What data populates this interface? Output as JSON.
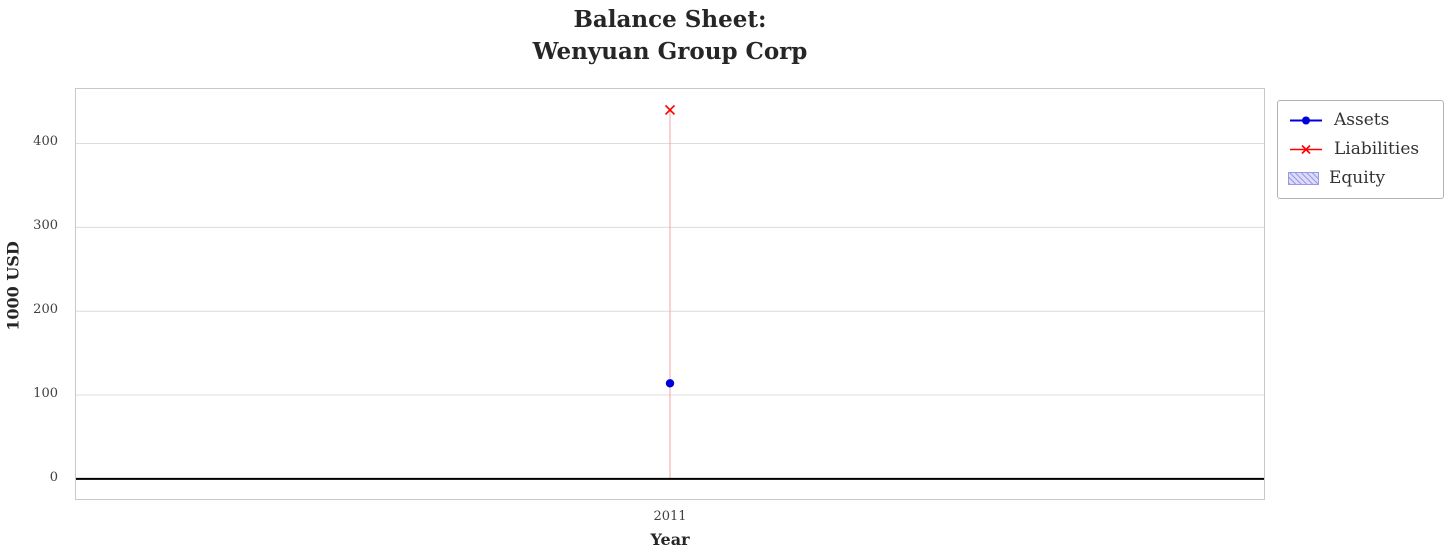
{
  "title": {
    "line1": "Balance Sheet:",
    "line2": "Wenyuan Group Corp"
  },
  "chart_data": {
    "type": "line",
    "title": "Balance Sheet: Wenyuan Group Corp",
    "xlabel": "Year",
    "ylabel": "1000 USD",
    "categories": [
      "2011"
    ],
    "series": [
      {
        "name": "Assets",
        "values": [
          114
        ],
        "color": "#0000dd",
        "marker": "circle"
      },
      {
        "name": "Liabilities",
        "values": [
          440
        ],
        "color": "#ff0000",
        "marker": "x"
      },
      {
        "name": "Equity",
        "values": [],
        "color": "#dcdcf8",
        "hatch_color": "#9898e8",
        "style": "hatched-area"
      }
    ],
    "y_ticks": [
      0,
      100,
      200,
      300,
      400
    ],
    "ylim": [
      -24,
      465
    ],
    "grid": true,
    "grid_color": "#dcdcdc",
    "zero_line_color": "#000000",
    "stem": {
      "x": "2011",
      "from": 0,
      "to": 440,
      "color": "#f2a3a3"
    },
    "legend_position": "upper-right-outside"
  }
}
